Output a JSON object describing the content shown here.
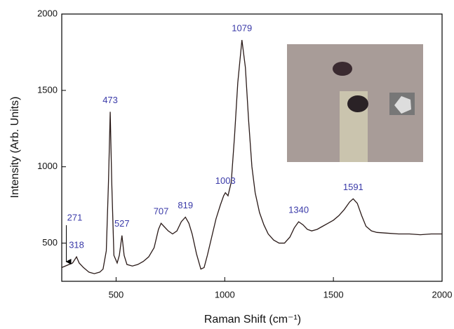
{
  "chart_data": {
    "type": "line",
    "xlabel": "Raman Shift (cm⁻¹)",
    "ylabel": "Intensity (Arb. Units)",
    "x": [
      250,
      275,
      300,
      318,
      330,
      350,
      375,
      400,
      425,
      440,
      455,
      465,
      473,
      480,
      490,
      505,
      515,
      527,
      537,
      550,
      575,
      600,
      625,
      650,
      675,
      695,
      707,
      720,
      740,
      760,
      780,
      800,
      819,
      835,
      850,
      870,
      890,
      905,
      920,
      940,
      960,
      980,
      995,
      1003,
      1015,
      1030,
      1045,
      1060,
      1079,
      1095,
      1110,
      1125,
      1140,
      1160,
      1180,
      1200,
      1225,
      1250,
      1275,
      1300,
      1320,
      1340,
      1360,
      1380,
      1400,
      1425,
      1450,
      1475,
      1500,
      1525,
      1550,
      1575,
      1591,
      1610,
      1630,
      1650,
      1675,
      1700,
      1750,
      1800,
      1850,
      1900,
      1950,
      2000
    ],
    "series": [
      {
        "color": "#2a1a18",
        "values": [
          340,
          355,
          370,
          410,
          370,
          340,
          310,
          300,
          310,
          330,
          450,
          900,
          1360,
          900,
          420,
          370,
          420,
          550,
          420,
          360,
          350,
          360,
          380,
          410,
          470,
          590,
          630,
          610,
          580,
          560,
          580,
          640,
          670,
          630,
          560,
          430,
          330,
          340,
          420,
          540,
          660,
          750,
          810,
          830,
          810,
          900,
          1200,
          1550,
          1830,
          1650,
          1300,
          1000,
          830,
          700,
          620,
          560,
          520,
          500,
          500,
          540,
          600,
          640,
          620,
          590,
          580,
          590,
          610,
          630,
          650,
          680,
          720,
          770,
          790,
          760,
          680,
          610,
          580,
          570,
          565,
          560,
          560,
          555,
          560,
          560
        ]
      }
    ],
    "annotations": [
      {
        "label": "271",
        "x": 271,
        "y": 360,
        "arrow": true
      },
      {
        "label": "318",
        "x": 318,
        "y": 410
      },
      {
        "label": "473",
        "x": 473,
        "y": 1360
      },
      {
        "label": "527",
        "x": 527,
        "y": 550
      },
      {
        "label": "707",
        "x": 707,
        "y": 630
      },
      {
        "label": "819",
        "x": 819,
        "y": 670
      },
      {
        "label": "1003",
        "x": 1003,
        "y": 830
      },
      {
        "label": "1079",
        "x": 1079,
        "y": 1830
      },
      {
        "label": "1340",
        "x": 1340,
        "y": 640
      },
      {
        "label": "1591",
        "x": 1591,
        "y": 790
      }
    ],
    "xlim": [
      250,
      2000
    ],
    "ylim": [
      250,
      2000
    ],
    "xticks": [
      500,
      1000,
      1500,
      2000
    ],
    "yticks": [
      500,
      1000,
      1500,
      2000
    ],
    "grid": false
  }
}
